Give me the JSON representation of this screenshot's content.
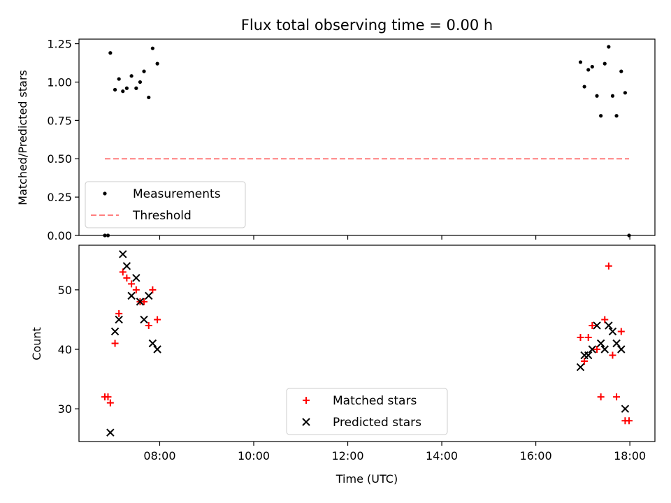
{
  "title": "Flux total observing time = 0.00 h",
  "xlabel": "Time (UTC)",
  "x_tick_labels": [
    "08:00",
    "10:00",
    "12:00",
    "14:00",
    "16:00",
    "18:00"
  ],
  "colors": {
    "measurements": "#000000",
    "threshold": "#ff7f7f",
    "matched": "#ff0000",
    "predicted": "#000000"
  },
  "chart_data": [
    {
      "type": "scatter",
      "ylabel": "Matched/Predicted stars",
      "ylim": [
        0,
        1.28
      ],
      "xlim": [
        "06:17",
        "18:32"
      ],
      "y_tick_labels": [
        "0.00",
        "0.25",
        "0.50",
        "0.75",
        "1.00",
        "1.25"
      ],
      "legend": {
        "position": "lower-left",
        "entries": [
          "Measurements",
          "Threshold"
        ]
      },
      "series": [
        {
          "name": "Measurements",
          "x": [
            "06:50",
            "06:54",
            "06:57",
            "07:03",
            "07:08",
            "07:13",
            "07:18",
            "07:24",
            "07:30",
            "07:35",
            "07:40",
            "07:46",
            "07:51",
            "07:57",
            "16:57",
            "17:02",
            "17:07",
            "17:12",
            "17:18",
            "17:23",
            "17:28",
            "17:33",
            "17:38",
            "17:43",
            "17:49",
            "17:54",
            "17:59"
          ],
          "y": [
            0.0,
            0.0,
            1.19,
            0.95,
            1.02,
            0.94,
            0.96,
            1.04,
            0.96,
            1.0,
            1.07,
            0.9,
            1.22,
            1.12,
            1.13,
            0.97,
            1.08,
            1.1,
            0.91,
            0.78,
            1.12,
            1.23,
            0.91,
            0.78,
            1.07,
            0.93,
            0.0
          ]
        },
        {
          "name": "Threshold",
          "x": [
            "06:50",
            "17:59"
          ],
          "y": [
            0.5,
            0.5
          ]
        }
      ]
    },
    {
      "type": "scatter",
      "ylabel": "Count",
      "ylim": [
        24.5,
        57.5
      ],
      "xlim": [
        "06:17",
        "18:32"
      ],
      "y_tick_labels": [
        "30",
        "40",
        "50"
      ],
      "legend": {
        "position": "lower-center",
        "entries": [
          "Matched stars",
          "Predicted stars"
        ]
      },
      "series": [
        {
          "name": "Matched stars",
          "x": [
            "06:50",
            "06:54",
            "06:57",
            "07:03",
            "07:08",
            "07:13",
            "07:18",
            "07:24",
            "07:30",
            "07:35",
            "07:40",
            "07:46",
            "07:51",
            "07:57",
            "16:57",
            "17:02",
            "17:07",
            "17:12",
            "17:18",
            "17:23",
            "17:28",
            "17:33",
            "17:38",
            "17:43",
            "17:49",
            "17:54",
            "17:59"
          ],
          "y": [
            32,
            32,
            31,
            41,
            46,
            53,
            52,
            51,
            50,
            48,
            48,
            44,
            50,
            45,
            42,
            38,
            42,
            44,
            40,
            32,
            45,
            54,
            39,
            32,
            43,
            28,
            28
          ]
        },
        {
          "name": "Predicted stars",
          "x": [
            "06:57",
            "07:03",
            "07:08",
            "07:13",
            "07:18",
            "07:24",
            "07:30",
            "07:35",
            "07:40",
            "07:46",
            "07:51",
            "07:57",
            "16:57",
            "17:02",
            "17:07",
            "17:12",
            "17:18",
            "17:23",
            "17:28",
            "17:33",
            "17:38",
            "17:43",
            "17:49",
            "17:54"
          ],
          "y": [
            26,
            43,
            45,
            56,
            54,
            49,
            52,
            48,
            45,
            49,
            41,
            40,
            37,
            39,
            39,
            40,
            44,
            41,
            40,
            44,
            43,
            41,
            40,
            30
          ]
        }
      ]
    }
  ]
}
